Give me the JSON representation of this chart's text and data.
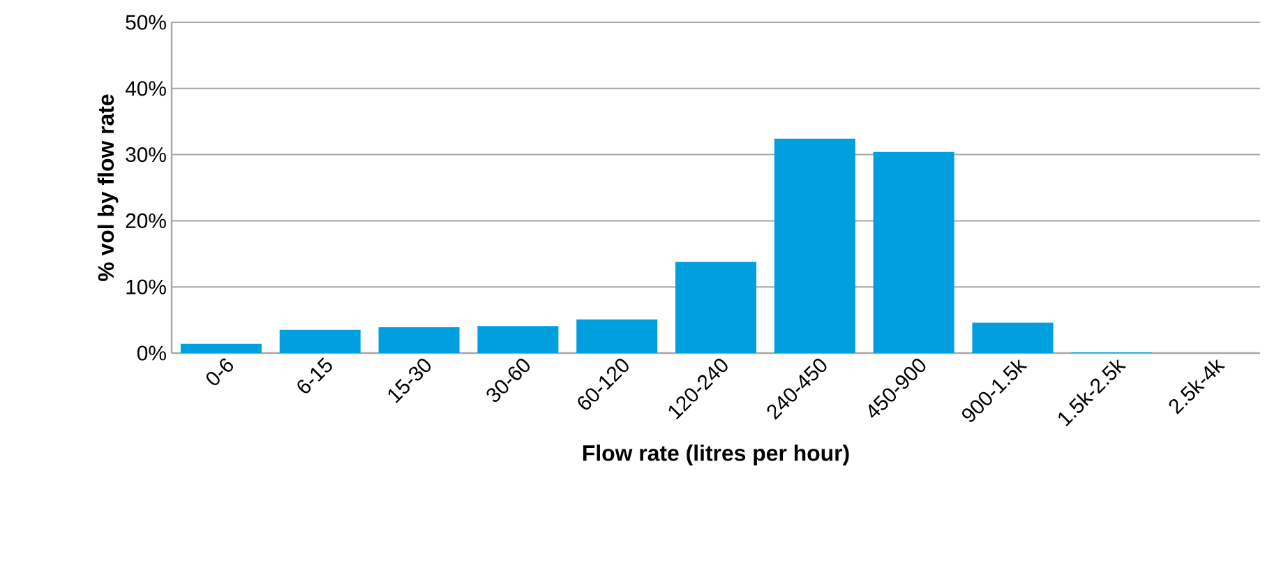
{
  "chart_data": {
    "type": "bar",
    "xlabel": "Flow rate (litres per hour)",
    "ylabel": "% vol by flow rate",
    "categories": [
      "0-6",
      "6-15",
      "15-30",
      "30-60",
      "60-120",
      "120-240",
      "240-450",
      "450-900",
      "900-1.5k",
      "1.5k-2.5k",
      "2.5k-4k"
    ],
    "values": [
      1.4,
      3.5,
      3.9,
      4.1,
      5.1,
      13.8,
      32.4,
      30.4,
      4.6,
      0.1,
      0
    ],
    "color": "#009fdf",
    "ylim": [
      0,
      50
    ],
    "yticks": [
      {
        "value": 0,
        "label": "0%"
      },
      {
        "value": 10,
        "label": "10%"
      },
      {
        "value": 20,
        "label": "20%"
      },
      {
        "value": 30,
        "label": "30%"
      },
      {
        "value": 40,
        "label": "40%"
      },
      {
        "value": 50,
        "label": "50%"
      }
    ],
    "grid": "y"
  }
}
